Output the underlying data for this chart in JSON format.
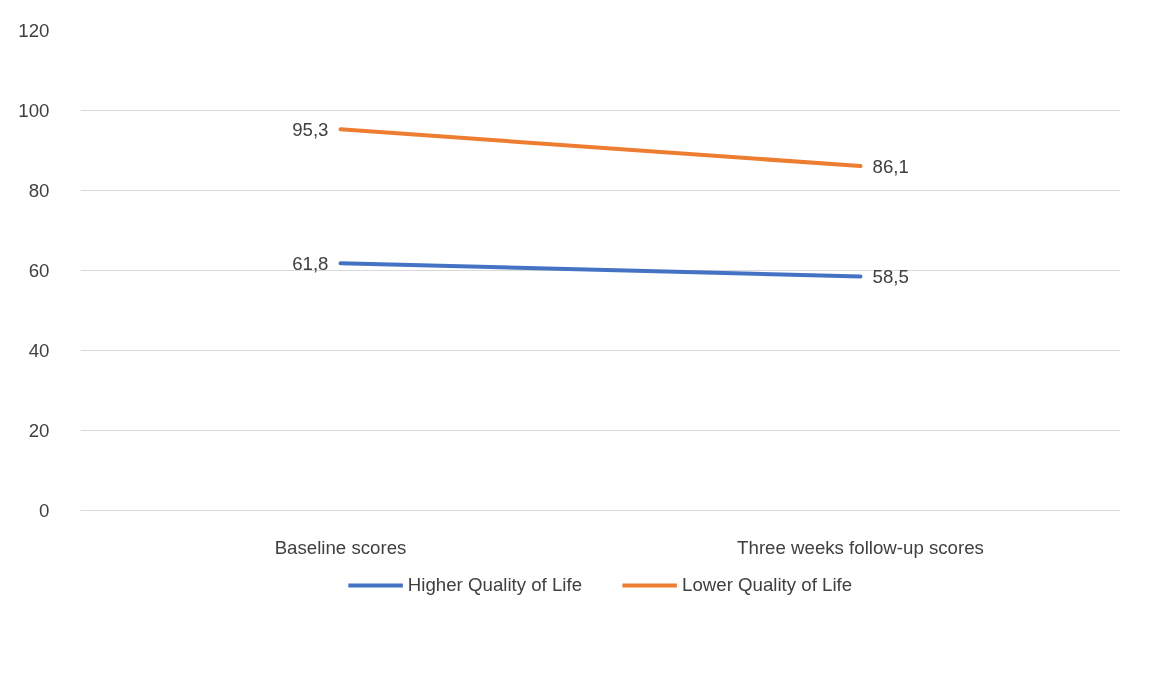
{
  "chart_data": {
    "type": "line",
    "categories": [
      "Baseline scores",
      "Three weeks follow-up scores"
    ],
    "series": [
      {
        "name": "Higher Quality of Life",
        "color": "#4472c4",
        "values": [
          61.8,
          58.5
        ],
        "value_labels": [
          "61,8",
          "58,5"
        ]
      },
      {
        "name": "Lower Quality of Life",
        "color": "#ed7d31",
        "values": [
          95.3,
          86.1
        ],
        "value_labels": [
          "95,3",
          "86,1"
        ]
      }
    ],
    "ylim": [
      0,
      120
    ],
    "yticks": [
      0,
      20,
      40,
      60,
      80,
      100,
      120
    ],
    "grid": "y",
    "legend": "bottom",
    "marker": "none",
    "line_style": "solid"
  }
}
